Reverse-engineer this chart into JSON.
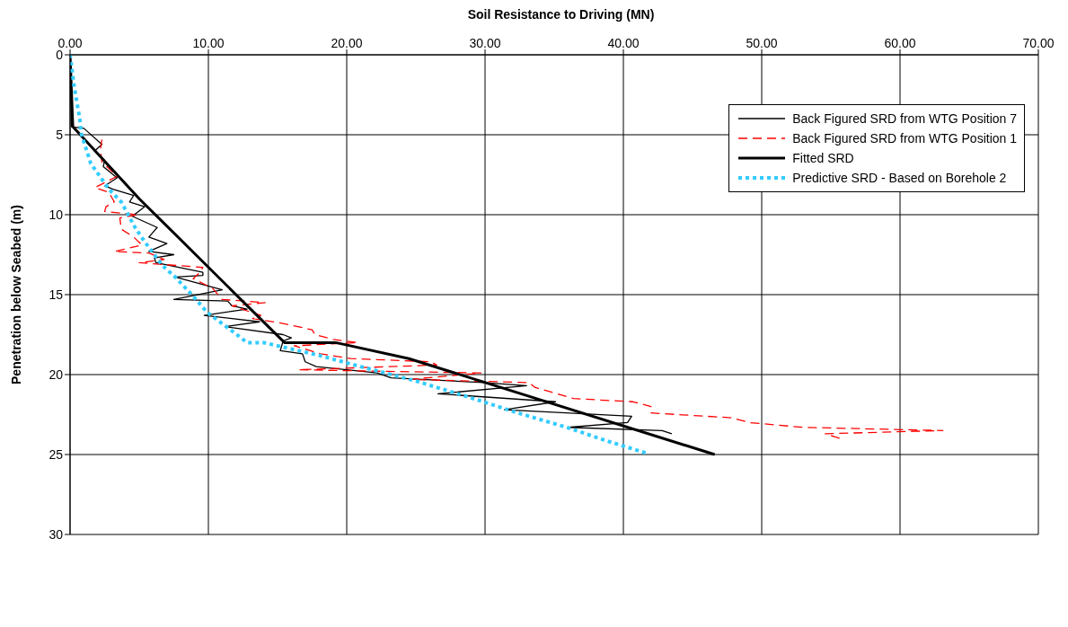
{
  "chart_data": {
    "type": "line",
    "xlabel": "Soil Resistance to Driving (MN)",
    "ylabel": "Penetration below Seabed (m)",
    "xlim": [
      0,
      70
    ],
    "xticks": [
      {
        "value": 0,
        "label": "0.00"
      },
      {
        "value": 10,
        "label": "10.00"
      },
      {
        "value": 20,
        "label": "20.00"
      },
      {
        "value": 30,
        "label": "30.00"
      },
      {
        "value": 40,
        "label": "40.00"
      },
      {
        "value": 50,
        "label": "50.00"
      },
      {
        "value": 60,
        "label": "60.00"
      },
      {
        "value": 70,
        "label": "70.00"
      }
    ],
    "ylim": [
      30,
      0
    ],
    "yticks": [
      0,
      5,
      10,
      15,
      20,
      25,
      30
    ],
    "grid": true,
    "legend": "top right",
    "marker": "none",
    "series": [
      {
        "name": "Back Figured SRD from WTG Position 7",
        "color": "#000000",
        "line_style": "solid",
        "x": [
          0,
          0.1,
          1.0,
          2.3,
          1.8,
          2.5,
          2.4,
          3.4,
          2.5,
          3.1,
          4.6,
          4.3,
          5.4,
          4.5,
          6.3,
          5.7,
          7.0,
          5.7,
          7.5,
          6.1,
          6.2,
          9.6,
          9.6,
          7.6,
          11,
          7.5,
          11.4,
          11.7,
          12.8,
          9.7,
          13.7,
          11.2,
          15.4,
          16,
          15.4,
          15.2,
          16.8,
          17,
          17.8,
          22.2,
          23.2,
          29.9,
          33,
          26.6,
          35.1,
          31.4,
          40.6,
          40.3,
          36,
          42.8,
          43.5
        ],
        "values": [
          0,
          4.5,
          4.6,
          5.6,
          6.0,
          6.6,
          7.0,
          7.7,
          8.2,
          8.4,
          8.8,
          9.2,
          9.5,
          10.1,
          10.8,
          11.4,
          11.8,
          12.3,
          12.5,
          12.7,
          13.0,
          13.6,
          13.8,
          13.9,
          14.7,
          15.3,
          15.4,
          15.7,
          15.9,
          16.3,
          16.7,
          17.0,
          17.5,
          17.7,
          17.9,
          18.5,
          18.7,
          19.2,
          19.5,
          19.9,
          20.2,
          20.5,
          20.7,
          21.2,
          21.7,
          22.2,
          22.6,
          23.0,
          23.3,
          23.5,
          23.7
        ]
      },
      {
        "name": "Back Figured SRD from WTG Position 1",
        "color": "#ff0000",
        "line_style": "dashed",
        "x": [
          2.3,
          2.2,
          2.3,
          3.4,
          1.8,
          2.8,
          3.2,
          2.6,
          2.5,
          4.9,
          3.6,
          3.7,
          4.6,
          5.2,
          3.2,
          5.7,
          6.8,
          5.0,
          9.6,
          9.4,
          8.9,
          10.3,
          11,
          14.1,
          11.7,
          13.8,
          13.2,
          15.4,
          17.5,
          17.7,
          19,
          20.8,
          16.2,
          18.1,
          20.3,
          26.1,
          26.5,
          16.5,
          29.7,
          24.6,
          33.2,
          33.6,
          36.4,
          40.7,
          42,
          42,
          47.8,
          49.1,
          53,
          63.1,
          54.6,
          55.7
        ],
        "values": [
          5.3,
          5.9,
          6.7,
          7.6,
          8.3,
          8.6,
          9.2,
          9.5,
          9.8,
          10.0,
          10.2,
          10.9,
          11.4,
          11.9,
          12.3,
          12.4,
          12.8,
          13.0,
          13.3,
          13.6,
          14.0,
          14.6,
          15.3,
          15.5,
          15.7,
          16.3,
          16.5,
          16.8,
          17.2,
          17.5,
          17.8,
          18.0,
          18.2,
          18.7,
          19.0,
          19.2,
          19.4,
          19.7,
          19.9,
          20.3,
          20.5,
          20.8,
          21.5,
          21.7,
          22.0,
          22.4,
          22.7,
          23.0,
          23.3,
          23.5,
          23.7,
          24.0
        ]
      },
      {
        "name": "Fitted SRD",
        "color": "#000000",
        "line_style": "solid",
        "x": [
          0,
          0.2,
          5,
          15.5,
          19.2,
          24.5,
          46.6
        ],
        "values": [
          0,
          4.5,
          9,
          18,
          18,
          19,
          25
        ]
      },
      {
        "name": "Predictive SRD - Based on  Borehole 2",
        "color": "#33ccff",
        "line_style": "dotted",
        "x": [
          0,
          0.3,
          0.7,
          0.8,
          1.5,
          2.8,
          3.7,
          4.7,
          5.4,
          6.7,
          7.6,
          8.8,
          9.9,
          11.9,
          12.8,
          14,
          15,
          18,
          21,
          25,
          29.9,
          32,
          35.9,
          39,
          41.8
        ],
        "values": [
          0,
          2,
          4,
          4.9,
          6.8,
          8.4,
          9.2,
          10.8,
          11.7,
          13.2,
          13.9,
          15,
          16.1,
          17.4,
          18,
          18,
          18.2,
          18.8,
          19.5,
          20.4,
          21.7,
          22.3,
          23.3,
          24.2,
          24.95
        ]
      }
    ]
  }
}
